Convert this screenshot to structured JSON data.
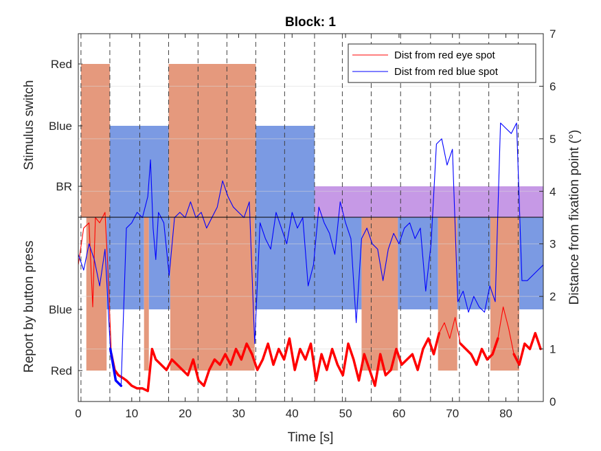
{
  "chart_data": {
    "type": "line",
    "title": "Block: 1",
    "xlabel": "Time [s]",
    "ylabel_left_top": "Stimulus switch",
    "ylabel_left_bottom": "Report by button press",
    "ylabel_right": "Distance from fixation point (°)",
    "xlim": [
      0,
      87
    ],
    "ylim_right": [
      0,
      7
    ],
    "x_ticks": [
      0,
      10,
      20,
      30,
      40,
      50,
      60,
      70,
      80
    ],
    "y_right_ticks": [
      0,
      1,
      2,
      3,
      4,
      5,
      6,
      7
    ],
    "stimulus_levels": [
      "Red",
      "Blue",
      "BR"
    ],
    "report_levels": [
      "Blue",
      "Red"
    ],
    "grid": true,
    "legend_position": "top-right",
    "colors": {
      "red_band": "#e5997d",
      "blue_band": "#7b9ae3",
      "br_band": "#c699e6",
      "red_line": "#ff0000",
      "blue_line": "#0000ff"
    },
    "stimulus_switch": [
      {
        "state": "Red",
        "start": 0.5,
        "end": 5.9
      },
      {
        "state": "Blue",
        "start": 5.9,
        "end": 16.9
      },
      {
        "state": "Red",
        "start": 16.9,
        "end": 33.2
      },
      {
        "state": "Blue",
        "start": 33.2,
        "end": 44.2
      },
      {
        "state": "BR",
        "start": 44.2,
        "end": 87
      }
    ],
    "button_report": [
      {
        "state": "Red",
        "start": 1.5,
        "end": 5.3
      },
      {
        "state": "Blue",
        "start": 5.3,
        "end": 12.3
      },
      {
        "state": "Red",
        "start": 12.3,
        "end": 13.2
      },
      {
        "state": "Blue",
        "start": 13.2,
        "end": 17.2
      },
      {
        "state": "Red",
        "start": 17.2,
        "end": 33.0
      },
      {
        "state": "Blue",
        "start": 33.0,
        "end": 53.0
      },
      {
        "state": "Red",
        "start": 53.0,
        "end": 59.8
      },
      {
        "state": "Blue",
        "start": 59.8,
        "end": 67.3
      },
      {
        "state": "Red",
        "start": 67.3,
        "end": 70.9
      },
      {
        "state": "Blue",
        "start": 70.9,
        "end": 77.1
      },
      {
        "state": "Red",
        "start": 77.1,
        "end": 82.5
      },
      {
        "state": "Blue",
        "start": 82.5,
        "end": 87
      }
    ],
    "switch_times": [
      0.5,
      5.9,
      11.5,
      16.9,
      22.4,
      27.8,
      33.2,
      38.6,
      44.2,
      49.4,
      54.8,
      60.3,
      65.9,
      71.3,
      76.8,
      82.3
    ],
    "series": [
      {
        "name": "Dist from red eye spot",
        "color": "#ff0000",
        "x": [
          0,
          1,
          2,
          2.7,
          3.2,
          4,
          5,
          5.5,
          6.2,
          6.8,
          7.5,
          8.3,
          9,
          10,
          11,
          12,
          13,
          13.8,
          14.5,
          15.5,
          16.5,
          17.5,
          18.5,
          19.5,
          20.5,
          21.5,
          22.5,
          23.5,
          24.5,
          25.5,
          26.5,
          27.5,
          28.5,
          29.5,
          30.5,
          31.5,
          32.5,
          33.5,
          34.5,
          35.5,
          36.5,
          37.5,
          38.5,
          39.5,
          40.5,
          41.5,
          42.5,
          43.5,
          44.5,
          45.5,
          46.5,
          47.5,
          48.5,
          49.5,
          50.5,
          51.5,
          52.5,
          53.5,
          54.5,
          55.5,
          56.5,
          57.5,
          58.5,
          59.5,
          60.5,
          61.5,
          62.5,
          63.5,
          64.5,
          65.5,
          66.5,
          67.5,
          68.5,
          69.5,
          70.5,
          71.5,
          72.5,
          73.5,
          74.5,
          75.5,
          76.5,
          77.5,
          78.5,
          79.5,
          80.5,
          81.5,
          82.5,
          83.5,
          84.5,
          85.5,
          86.5
        ],
        "y": [
          2.6,
          3.3,
          3.4,
          1.8,
          3.5,
          3.4,
          3.6,
          2.6,
          0.9,
          0.6,
          0.5,
          0.45,
          0.4,
          0.3,
          0.25,
          0.25,
          0.2,
          1.0,
          0.8,
          0.7,
          0.6,
          0.8,
          0.7,
          0.6,
          0.5,
          0.8,
          0.4,
          0.3,
          0.6,
          0.8,
          0.7,
          0.9,
          0.7,
          1.0,
          0.8,
          1.1,
          0.9,
          0.6,
          0.8,
          1.1,
          0.7,
          1.0,
          0.8,
          1.2,
          0.6,
          1.0,
          0.8,
          1.1,
          0.4,
          0.9,
          0.6,
          1.0,
          0.7,
          0.5,
          1.1,
          0.8,
          0.4,
          0.9,
          0.6,
          0.3,
          0.9,
          0.5,
          0.6,
          1.0,
          0.7,
          0.8,
          0.9,
          0.6,
          1.0,
          1.2,
          0.9,
          1.3,
          1.5,
          1.2,
          1.6,
          1.1,
          1.0,
          0.9,
          0.7,
          1.0,
          0.8,
          0.9,
          1.2,
          1.8,
          1.4,
          0.9,
          0.7,
          1.1,
          1.0,
          1.3,
          1.0
        ]
      },
      {
        "name": "Dist from red blue spot",
        "color": "#0000ff",
        "x": [
          0,
          1,
          2,
          3,
          4,
          5,
          6,
          7,
          8,
          9,
          10,
          11,
          12,
          13,
          13.5,
          14,
          14.5,
          15,
          16,
          17,
          18,
          19,
          20,
          21,
          22,
          23,
          24,
          25,
          26,
          27,
          28,
          29,
          30,
          31,
          32,
          33,
          34,
          35,
          36,
          37,
          38,
          39,
          40,
          41,
          42,
          43,
          44,
          45,
          46,
          47,
          48,
          49,
          50,
          51,
          52,
          53,
          54,
          55,
          56,
          57,
          58,
          59,
          60,
          61,
          62,
          63,
          64,
          65,
          66,
          67,
          68,
          69,
          70,
          71,
          72,
          73,
          74,
          75,
          76,
          77,
          78,
          79,
          80,
          81,
          82,
          83,
          84,
          85,
          86,
          87
        ],
        "y": [
          2.8,
          2.5,
          3.0,
          2.7,
          2.2,
          2.9,
          1.0,
          0.4,
          0.3,
          3.3,
          3.4,
          3.6,
          3.5,
          3.9,
          4.6,
          3.3,
          2.7,
          3.6,
          3.4,
          2.4,
          3.5,
          3.6,
          3.5,
          3.8,
          3.5,
          3.6,
          3.3,
          3.5,
          3.7,
          4.2,
          3.9,
          3.7,
          3.6,
          3.5,
          3.8,
          1.1,
          3.4,
          3.1,
          2.9,
          3.6,
          3.3,
          3.0,
          3.6,
          3.3,
          3.5,
          2.2,
          2.6,
          3.7,
          3.4,
          3.2,
          2.8,
          3.8,
          3.4,
          3.1,
          1.5,
          3.1,
          3.3,
          3.0,
          2.9,
          2.3,
          2.9,
          3.2,
          3.0,
          3.3,
          3.4,
          3.1,
          3.3,
          2.1,
          3.0,
          4.9,
          5.0,
          4.5,
          4.8,
          1.9,
          2.1,
          1.7,
          2.0,
          1.8,
          1.7,
          2.2,
          1.9,
          5.3,
          5.2,
          5.1,
          5.3,
          2.3,
          2.3,
          2.4,
          2.5,
          2.6
        ]
      }
    ]
  }
}
